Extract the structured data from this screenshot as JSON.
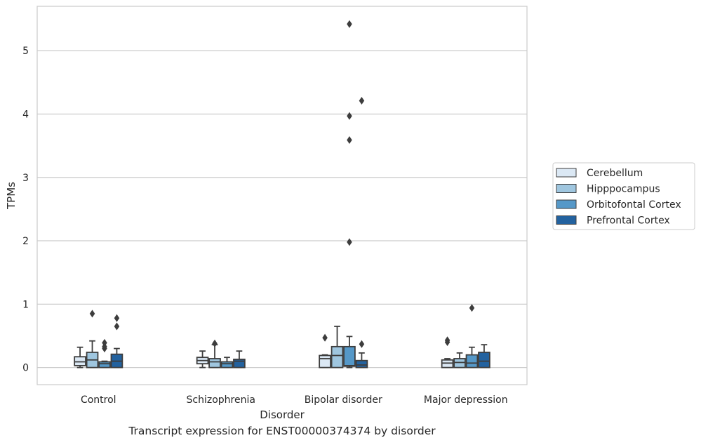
{
  "caption": "Transcript expression for ENST00000374374 by disorder",
  "chart_data": {
    "type": "box",
    "xlabel": "Disorder",
    "ylabel": "TPMs",
    "ylim": [
      -0.27,
      5.7
    ],
    "yticks": [
      0,
      1,
      2,
      3,
      4,
      5
    ],
    "categories": [
      "Control",
      "Schizophrenia",
      "Bipolar disorder",
      "Major depression"
    ],
    "legend_position": "right",
    "series": [
      {
        "name": "Cerebellum",
        "color": "#dbe8f4",
        "boxes": [
          {
            "whislo": 0.0,
            "q1": 0.03,
            "med": 0.09,
            "q3": 0.17,
            "whishi": 0.32,
            "fliers": []
          },
          {
            "whislo": 0.0,
            "q1": 0.06,
            "med": 0.11,
            "q3": 0.16,
            "whishi": 0.26,
            "fliers": []
          },
          {
            "whislo": 0.0,
            "q1": 0.0,
            "med": 0.14,
            "q3": 0.19,
            "whishi": 0.2,
            "fliers": [
              0.47
            ]
          },
          {
            "whislo": 0.0,
            "q1": 0.0,
            "med": 0.07,
            "q3": 0.12,
            "whishi": 0.14,
            "fliers": [
              0.4,
              0.43
            ]
          }
        ]
      },
      {
        "name": "Hipppocampus",
        "color": "#9fc6df",
        "boxes": [
          {
            "whislo": 0.0,
            "q1": 0.0,
            "med": 0.12,
            "q3": 0.24,
            "whishi": 0.42,
            "fliers": [
              0.85
            ]
          },
          {
            "whislo": 0.0,
            "q1": 0.0,
            "med": 0.09,
            "q3": 0.14,
            "whishi": 0.36,
            "fliers": [
              0.38
            ]
          },
          {
            "whislo": 0.0,
            "q1": 0.0,
            "med": 0.19,
            "q3": 0.33,
            "whishi": 0.65,
            "fliers": []
          },
          {
            "whislo": 0.0,
            "q1": 0.0,
            "med": 0.08,
            "q3": 0.14,
            "whishi": 0.23,
            "fliers": []
          }
        ]
      },
      {
        "name": "Orbitofontal Cortex",
        "color": "#5598c8",
        "boxes": [
          {
            "whislo": 0.0,
            "q1": 0.0,
            "med": 0.06,
            "q3": 0.09,
            "whishi": 0.1,
            "fliers": [
              0.3,
              0.33,
              0.39
            ]
          },
          {
            "whislo": 0.0,
            "q1": 0.0,
            "med": 0.06,
            "q3": 0.09,
            "whishi": 0.16,
            "fliers": []
          },
          {
            "whislo": 0.0,
            "q1": 0.02,
            "med": 0.03,
            "q3": 0.33,
            "whishi": 0.49,
            "fliers": [
              1.98,
              3.59,
              3.97,
              5.42
            ]
          },
          {
            "whislo": 0.0,
            "q1": 0.0,
            "med": 0.07,
            "q3": 0.2,
            "whishi": 0.32,
            "fliers": [
              0.94
            ]
          }
        ]
      },
      {
        "name": "Prefrontal Cortex",
        "color": "#23629f",
        "boxes": [
          {
            "whislo": 0.0,
            "q1": 0.0,
            "med": 0.1,
            "q3": 0.21,
            "whishi": 0.3,
            "fliers": [
              0.65,
              0.78
            ]
          },
          {
            "whislo": 0.0,
            "q1": 0.0,
            "med": 0.1,
            "q3": 0.13,
            "whishi": 0.26,
            "fliers": []
          },
          {
            "whislo": 0.0,
            "q1": 0.0,
            "med": 0.04,
            "q3": 0.11,
            "whishi": 0.23,
            "fliers": [
              0.37,
              4.21
            ]
          },
          {
            "whislo": 0.0,
            "q1": 0.0,
            "med": 0.1,
            "q3": 0.24,
            "whishi": 0.36,
            "fliers": []
          }
        ]
      }
    ]
  }
}
